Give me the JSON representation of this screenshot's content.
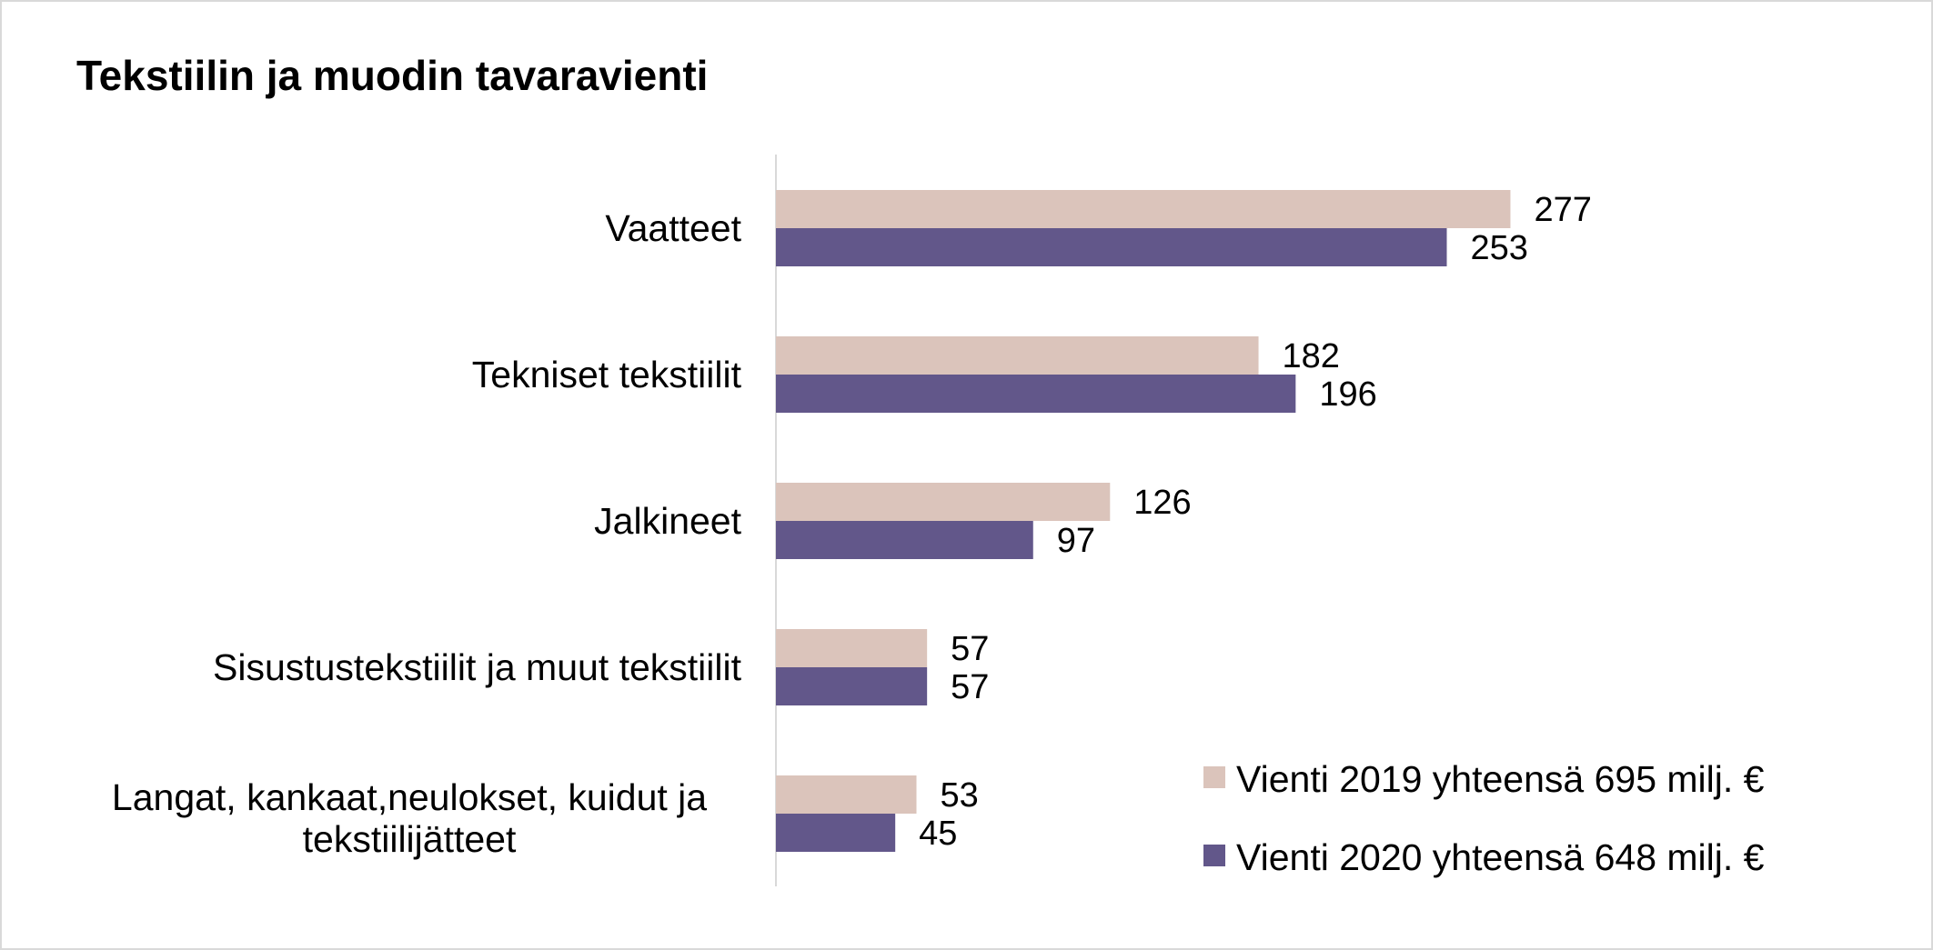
{
  "chart_data": {
    "type": "bar",
    "orientation": "horizontal",
    "title": "Tekstiilin ja muodin tavaravienti",
    "categories": [
      [
        "Vaatteet"
      ],
      [
        "Tekniset tekstiilit"
      ],
      [
        "Jalkineet"
      ],
      [
        "Sisustustekstiilit ja muut tekstiilit"
      ],
      [
        "Langat, kankaat,neulokset, kuidut ja",
        "tekstiilijätteet"
      ]
    ],
    "series": [
      {
        "name": "Vienti 2019 yhteensä 695 milj. €",
        "values": [
          277,
          182,
          126,
          57,
          53
        ],
        "color": "#dbc4bb"
      },
      {
        "name": "Vienti 2020 yhteensä 648 milj. €",
        "values": [
          253,
          196,
          97,
          57,
          45
        ],
        "color": "#62578a"
      }
    ],
    "xlim": [
      0,
      300
    ],
    "data_labels": true,
    "gridlines": false,
    "legend_position": "bottom-right"
  }
}
